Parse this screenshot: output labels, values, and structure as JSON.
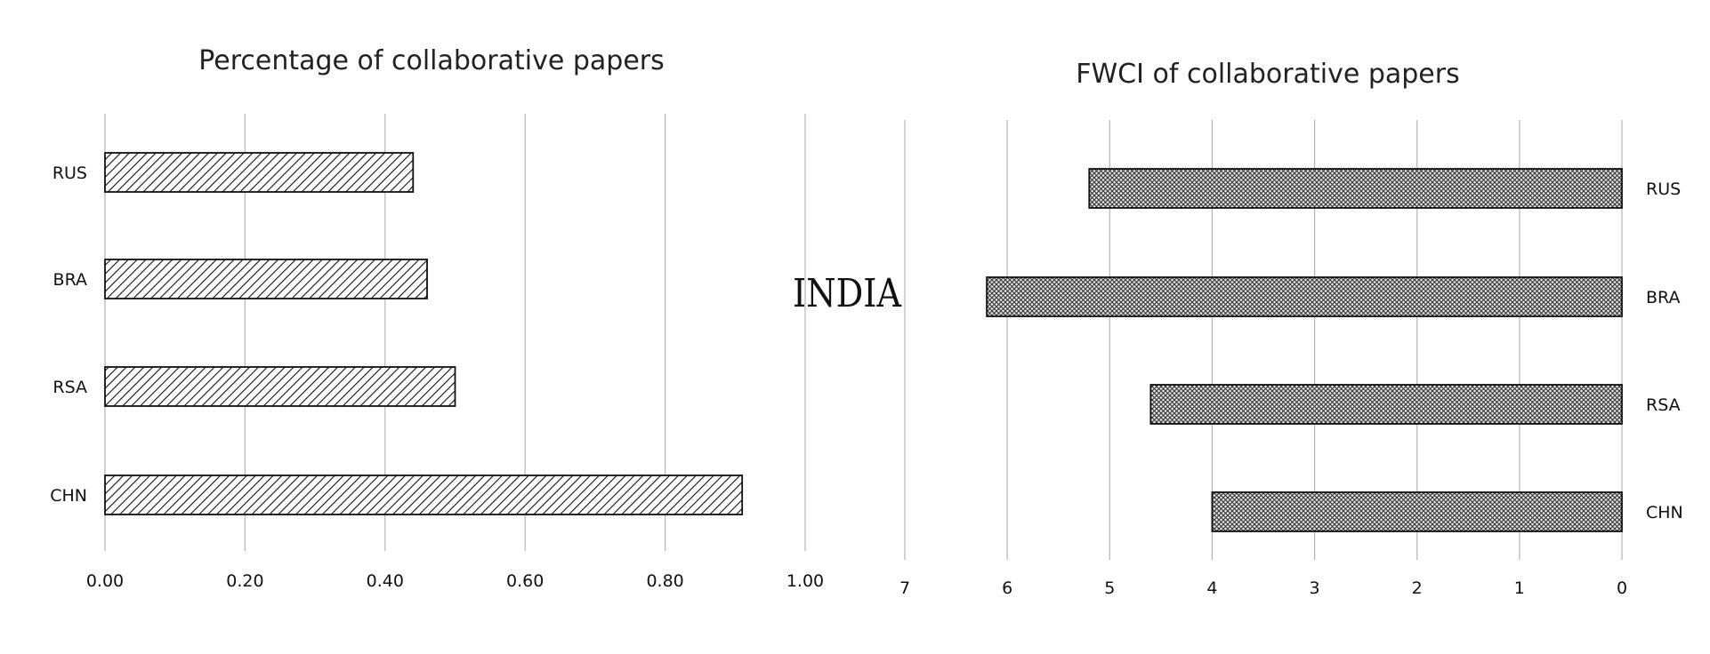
{
  "center_label": "INDIA",
  "chart_data": [
    {
      "type": "bar",
      "orientation": "horizontal",
      "title": "Percentage of collaborative papers",
      "categories": [
        "RUS",
        "BRA",
        "RSA",
        "CHN"
      ],
      "values": [
        0.44,
        0.46,
        0.5,
        0.91
      ],
      "xlim": [
        0,
        1.0
      ],
      "x_ticks": [
        "0.00",
        "0.20",
        "0.40",
        "0.60",
        "0.80",
        "1.00"
      ],
      "grid": true,
      "bar_fill": "diagonal-hatch",
      "category_axis_side": "left"
    },
    {
      "type": "bar",
      "orientation": "horizontal",
      "reversed_x": true,
      "title": "FWCI of collaborative papers",
      "categories": [
        "RUS",
        "BRA",
        "RSA",
        "CHN"
      ],
      "values": [
        5.2,
        6.2,
        4.6,
        4.0
      ],
      "xlim": [
        0,
        7
      ],
      "x_ticks": [
        "7",
        "6",
        "5",
        "4",
        "3",
        "2",
        "1",
        "0"
      ],
      "grid": true,
      "bar_fill": "crosshatch",
      "category_axis_side": "right"
    }
  ]
}
